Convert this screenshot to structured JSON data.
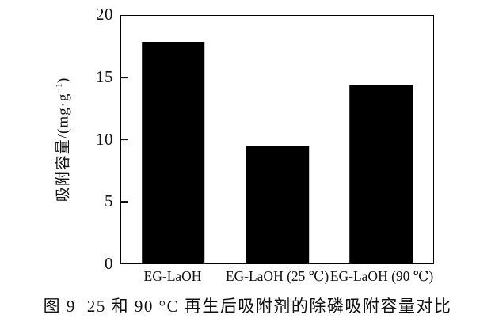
{
  "figure": {
    "caption_label": "图 9",
    "caption_text": "25 和 90 °C 再生后吸附剂的除磷吸附容量对比"
  },
  "chart_data": {
    "type": "bar",
    "categories": [
      "EG-LaOH",
      "EG-LaOH (25 ℃)",
      "EG-LaOH (90 ℃)"
    ],
    "values": [
      17.9,
      9.5,
      14.4
    ],
    "title": "",
    "xlabel": "",
    "ylabel": "吸附容量/(mg·g⁻¹)",
    "ylabel_parts": {
      "prefix": "吸附容量/(mg·g",
      "sup": "−1",
      "suffix": ")"
    },
    "ylim": [
      0,
      20
    ],
    "yticks": [
      0,
      5,
      10,
      15,
      20
    ],
    "grid": false,
    "legend": false,
    "frame": "full-box",
    "bar_color": "#000000",
    "background_color": "#ffffff"
  }
}
